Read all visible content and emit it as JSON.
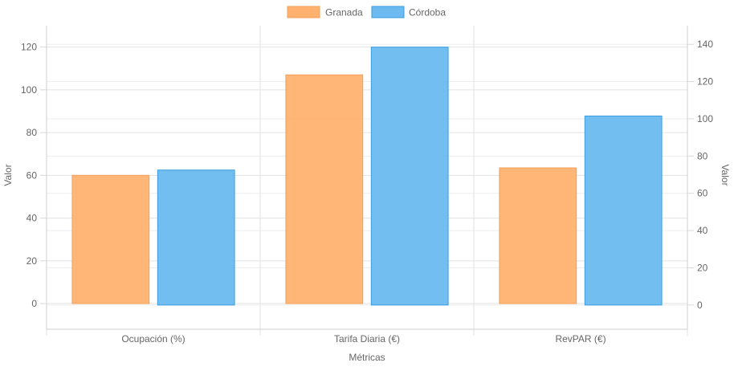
{
  "chart_data": {
    "type": "bar",
    "categories": [
      "Ocupación (%)",
      "Tarifa Diaria (€)",
      "RevPAR (€)"
    ],
    "series": [
      {
        "name": "Granada",
        "axis": "left",
        "values": [
          60,
          107,
          63.5
        ],
        "color": "#ffb26f",
        "border": "#f3a05a"
      },
      {
        "name": "Córdoba",
        "axis": "right",
        "values": [
          72.5,
          138.5,
          101.5
        ],
        "color": "#6cbaf0",
        "border": "#3a9ee0"
      }
    ],
    "xlabel": "Métricas",
    "ylabel_left": "Valor",
    "ylabel_right": "Valor",
    "ylim_left": [
      -12,
      130
    ],
    "yticks_left": [
      0,
      20,
      40,
      60,
      80,
      100,
      120
    ],
    "ylim_right": [
      -13,
      150
    ],
    "yticks_right": [
      0,
      20,
      40,
      60,
      80,
      100,
      120,
      140
    ],
    "legend_position": "top-center",
    "grid": true
  }
}
